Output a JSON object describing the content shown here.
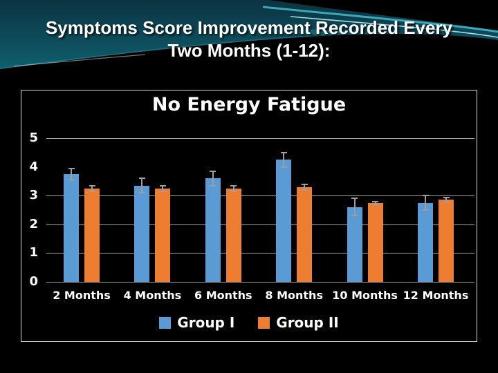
{
  "slide": {
    "title_line1": "Symptoms Score Improvement Recorded Every",
    "title_line2": "Two Months (1-12):"
  },
  "chart_data": {
    "type": "bar",
    "title": "No Energy Fatigue",
    "categories": [
      "2 Months",
      "4 Months",
      "6 Months",
      "8 Months",
      "10 Months",
      "12 Months"
    ],
    "series": [
      {
        "name": "Group I",
        "color": "#5B9BD5",
        "values": [
          3.75,
          3.35,
          3.6,
          4.25,
          2.6,
          2.75
        ],
        "errors": [
          0.2,
          0.25,
          0.25,
          0.25,
          0.3,
          0.25
        ]
      },
      {
        "name": "Group II",
        "color": "#ED7D31",
        "values": [
          3.25,
          3.25,
          3.25,
          3.3,
          2.75,
          2.85
        ],
        "errors": [
          0.1,
          0.1,
          0.1,
          0.1,
          0.05,
          0.08
        ]
      }
    ],
    "ylim": [
      0,
      5
    ],
    "yticks": [
      5,
      4,
      3,
      2,
      1,
      0
    ],
    "gridline_values": [
      5,
      3,
      2,
      1,
      0
    ],
    "grid": true,
    "legend_position": "bottom"
  },
  "colors": {
    "chart_background": "#000000",
    "chart_border": "#d9d9d9",
    "gridline": "#a6a6a6",
    "error_bar": "#9e9e9e",
    "text": "#ffffff"
  }
}
